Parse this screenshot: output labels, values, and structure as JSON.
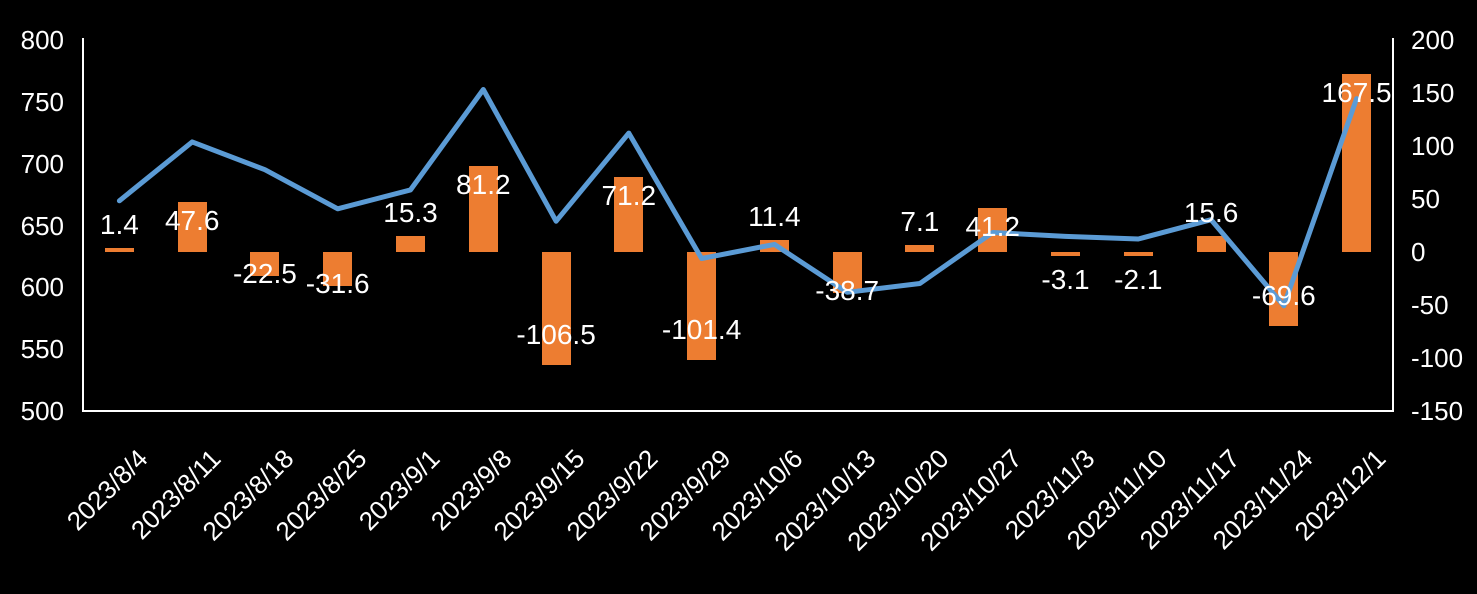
{
  "chart_data": {
    "type": "combo",
    "title": "",
    "legend": "none",
    "grid": false,
    "background_color": "#000000",
    "text_color": "#FFFFFF",
    "categories": [
      "2023/8/4",
      "2023/8/11",
      "2023/8/18",
      "2023/8/25",
      "2023/9/1",
      "2023/9/8",
      "2023/9/15",
      "2023/9/22",
      "2023/9/29",
      "2023/10/6",
      "2023/10/13",
      "2023/10/20",
      "2023/10/27",
      "2023/11/3",
      "2023/11/10",
      "2023/11/17",
      "2023/11/24",
      "2023/12/1"
    ],
    "series": [
      {
        "name": "weekly-change-bars",
        "type": "bar",
        "axis": "right",
        "color": "#ED7D31",
        "values": [
          1.4,
          47.6,
          -22.5,
          -31.6,
          15.3,
          81.2,
          -106.5,
          71.2,
          -101.4,
          11.4,
          -38.7,
          7.1,
          41.2,
          -3.1,
          -2.1,
          15.6,
          -69.6,
          167.5
        ],
        "data_labels": [
          "1.4",
          "47.6",
          "-22.5",
          "-31.6",
          "15.3",
          "81.2",
          "-106.5",
          "71.2",
          "-101.4",
          "11.4",
          "-38.7",
          "7.1",
          "41.2",
          "-3.1",
          "-2.1",
          "15.6",
          "-69.6",
          "167.5"
        ]
      },
      {
        "name": "level-line",
        "type": "line",
        "axis": "left",
        "color": "#5B9BD5",
        "values_estimated": true,
        "values": [
          670.0,
          717.6,
          695.1,
          663.5,
          678.8,
          760.0,
          653.5,
          724.7,
          623.3,
          634.7,
          596.0,
          603.1,
          644.3,
          641.2,
          639.1,
          654.7,
          585.1,
          752.6
        ]
      }
    ],
    "left_axis": {
      "min": 500,
      "max": 800,
      "step": 50,
      "ticks": [
        "800",
        "750",
        "700",
        "650",
        "600",
        "550",
        "500"
      ]
    },
    "right_axis": {
      "min": -150,
      "max": 200,
      "step": 50,
      "ticks": [
        "200",
        "150",
        "100",
        "50",
        "0",
        "-50",
        "-100",
        "-150"
      ]
    },
    "x_axis": {
      "label_rotation_deg": -45
    }
  }
}
